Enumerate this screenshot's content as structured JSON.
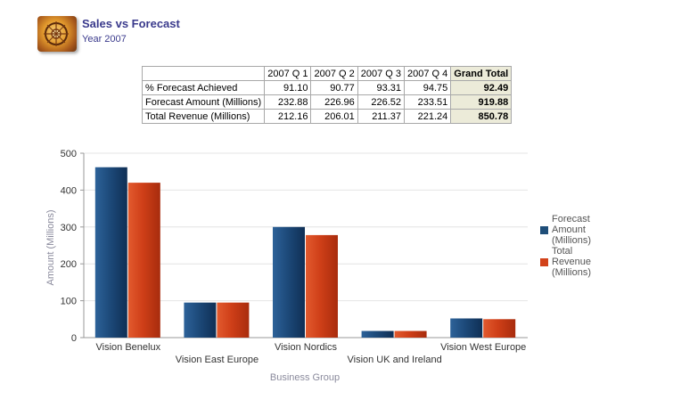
{
  "report": {
    "title": "Sales vs Forecast",
    "subtitle": "Year 2007",
    "icon": "report-thumbnail-icon"
  },
  "table": {
    "columns": [
      "2007 Q 1",
      "2007 Q 2",
      "2007 Q 3",
      "2007 Q 4"
    ],
    "grand_total_label": "Grand Total",
    "rows": [
      {
        "label": "% Forecast Achieved",
        "values": [
          "91.10",
          "90.77",
          "93.31",
          "94.75"
        ],
        "total": "92.49"
      },
      {
        "label": "Forecast Amount (Millions)",
        "values": [
          "232.88",
          "226.96",
          "226.52",
          "233.51"
        ],
        "total": "919.88"
      },
      {
        "label": "Total Revenue (Millions)",
        "values": [
          "212.16",
          "206.01",
          "211.37",
          "221.24"
        ],
        "total": "850.78"
      }
    ]
  },
  "legend": {
    "items": [
      {
        "label": "Forecast Amount (Millions)",
        "color": "#1f4e79"
      },
      {
        "label": "Total Revenue (Millions)",
        "color": "#d2421a"
      }
    ]
  },
  "chart_data": {
    "type": "bar",
    "xlabel": "Business Group",
    "ylabel": "Amount (Millions)",
    "ylim": [
      0,
      500
    ],
    "yticks": [
      0,
      100,
      200,
      300,
      400,
      500
    ],
    "grid": true,
    "legend_position": "right",
    "categories": [
      "Vision Benelux",
      "Vision East Europe",
      "Vision Nordics",
      "Vision UK and Ireland",
      "Vision West Europe"
    ],
    "series": [
      {
        "name": "Forecast Amount (Millions)",
        "color": "#1f4e79",
        "values": [
          462,
          95,
          300,
          18,
          52
        ]
      },
      {
        "name": "Total Revenue (Millions)",
        "color": "#d2421a",
        "values": [
          420,
          95,
          278,
          18,
          50
        ]
      }
    ]
  }
}
